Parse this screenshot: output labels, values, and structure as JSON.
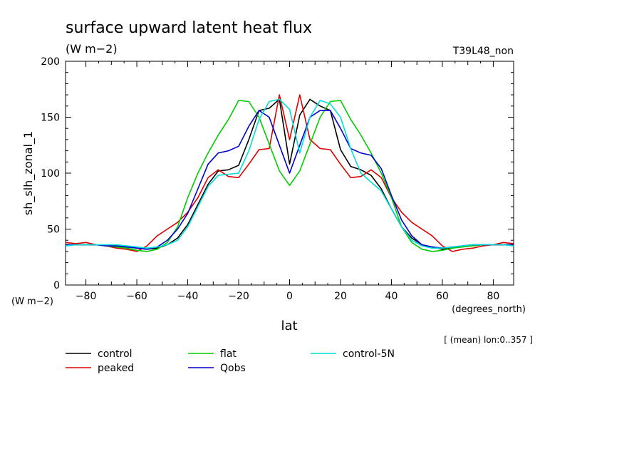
{
  "chart_data": {
    "type": "line",
    "title": "surface upward latent heat flux",
    "subtitle": "(W m−2)",
    "run_label": "T39L48_non",
    "xlabel": "lat",
    "x_units": "(degrees_north)",
    "ylabel": "sh_slh_zonal_1",
    "y_units": "(W m−2)",
    "averaging_note": "[ (mean) lon:0..357 ]",
    "xlim": [
      -88,
      88
    ],
    "ylim": [
      0,
      200
    ],
    "x_ticks": [
      -80,
      -60,
      -40,
      -20,
      0,
      20,
      40,
      60,
      80
    ],
    "y_ticks": [
      0,
      50,
      100,
      150,
      200
    ],
    "grid": false,
    "legend_position": "bottom-left",
    "x": [
      -88,
      -84,
      -80,
      -76,
      -72,
      -68,
      -64,
      -60,
      -56,
      -52,
      -48,
      -44,
      -40,
      -36,
      -32,
      -28,
      -24,
      -20,
      -16,
      -12,
      -8,
      -4,
      0,
      4,
      8,
      12,
      16,
      20,
      24,
      28,
      32,
      36,
      40,
      44,
      48,
      52,
      56,
      60,
      64,
      68,
      72,
      76,
      80,
      84,
      88
    ],
    "series": [
      {
        "name": "control",
        "color": "#000000",
        "values": [
          36,
          36,
          36,
          36,
          35,
          35,
          34,
          33,
          32,
          33,
          36,
          42,
          54,
          72,
          90,
          102,
          103,
          107,
          130,
          156,
          158,
          166,
          108,
          152,
          166,
          160,
          156,
          121,
          106,
          103,
          98,
          86,
          68,
          52,
          42,
          36,
          34,
          32,
          33,
          35,
          36,
          36,
          36,
          36,
          36
        ]
      },
      {
        "name": "peaked",
        "color": "#dd0000",
        "values": [
          38,
          37,
          38,
          36,
          35,
          33,
          32,
          30,
          35,
          44,
          50,
          56,
          65,
          78,
          96,
          103,
          97,
          96,
          108,
          121,
          122,
          170,
          130,
          170,
          130,
          122,
          121,
          108,
          96,
          97,
          103,
          96,
          78,
          65,
          56,
          50,
          44,
          35,
          30,
          32,
          33,
          35,
          36,
          38,
          37
        ]
      },
      {
        "name": "flat",
        "color": "#00cc00",
        "values": [
          35,
          36,
          36,
          36,
          35,
          34,
          33,
          31,
          30,
          32,
          38,
          52,
          78,
          100,
          118,
          134,
          148,
          165,
          164,
          150,
          126,
          102,
          89,
          102,
          126,
          150,
          164,
          165,
          148,
          134,
          118,
          100,
          78,
          52,
          38,
          32,
          30,
          31,
          33,
          34,
          35,
          36,
          36,
          36,
          35
        ]
      },
      {
        "name": "Qobs",
        "color": "#0000cc",
        "values": [
          36,
          36,
          36,
          36,
          35,
          35,
          34,
          33,
          32,
          34,
          40,
          50,
          64,
          86,
          108,
          118,
          120,
          124,
          142,
          156,
          150,
          125,
          100,
          125,
          150,
          156,
          156,
          140,
          122,
          118,
          116,
          104,
          80,
          58,
          44,
          36,
          34,
          33,
          34,
          35,
          36,
          36,
          36,
          36,
          36
        ]
      },
      {
        "name": "control-5N",
        "color": "#00dddd",
        "values": [
          35,
          36,
          36,
          36,
          36,
          36,
          35,
          34,
          33,
          34,
          36,
          40,
          52,
          70,
          88,
          98,
          99,
          100,
          120,
          148,
          164,
          166,
          157,
          118,
          150,
          165,
          162,
          150,
          122,
          100,
          92,
          84,
          68,
          52,
          40,
          35,
          33,
          33,
          34,
          35,
          36,
          36,
          36,
          36,
          35
        ]
      }
    ]
  }
}
